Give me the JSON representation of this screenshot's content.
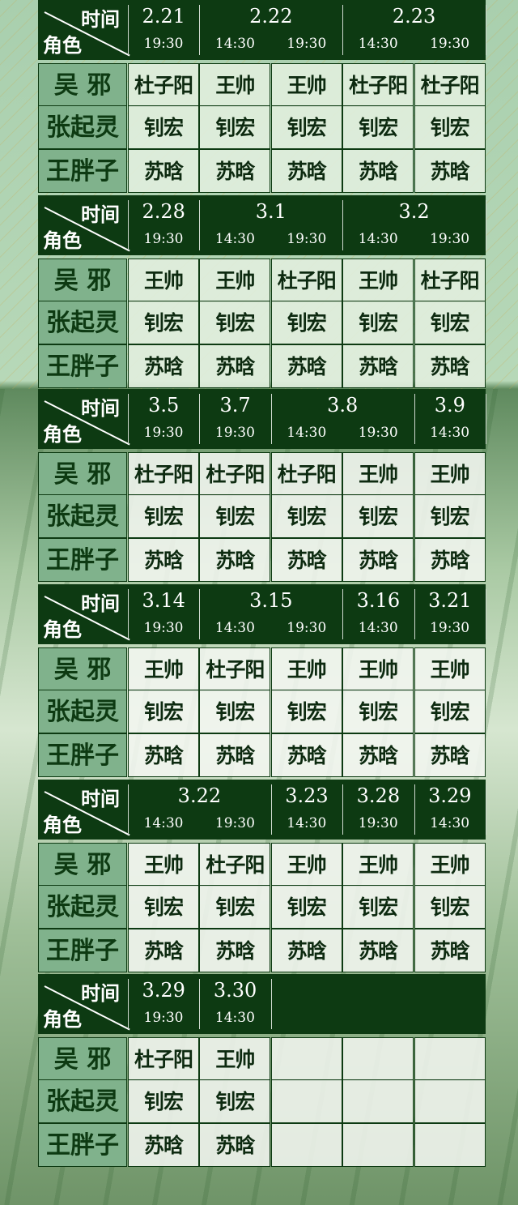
{
  "header_labels": {
    "time": "时间",
    "role": "角色"
  },
  "roles": [
    "吴 邪",
    "张起灵",
    "王胖子"
  ],
  "colors": {
    "header_bg": "#0d3a12",
    "role_bg": "#80b28c",
    "cell_bg": "#e1eede"
  },
  "blocks": [
    {
      "dates": [
        {
          "date": "2.21",
          "span": 1
        },
        {
          "date": "2.22",
          "span": 2
        },
        {
          "date": "2.23",
          "span": 2
        }
      ],
      "times": [
        "19:30",
        "14:30",
        "19:30",
        "14:30",
        "19:30"
      ],
      "cast": [
        [
          "杜子阳",
          "王帅",
          "王帅",
          "杜子阳",
          "杜子阳"
        ],
        [
          "钊宏",
          "钊宏",
          "钊宏",
          "钊宏",
          "钊宏"
        ],
        [
          "苏晗",
          "苏晗",
          "苏晗",
          "苏晗",
          "苏晗"
        ]
      ]
    },
    {
      "dates": [
        {
          "date": "2.28",
          "span": 1
        },
        {
          "date": "3.1",
          "span": 2
        },
        {
          "date": "3.2",
          "span": 2
        }
      ],
      "times": [
        "19:30",
        "14:30",
        "19:30",
        "14:30",
        "19:30"
      ],
      "cast": [
        [
          "王帅",
          "王帅",
          "杜子阳",
          "王帅",
          "杜子阳"
        ],
        [
          "钊宏",
          "钊宏",
          "钊宏",
          "钊宏",
          "钊宏"
        ],
        [
          "苏晗",
          "苏晗",
          "苏晗",
          "苏晗",
          "苏晗"
        ]
      ]
    },
    {
      "dates": [
        {
          "date": "3.5",
          "span": 1
        },
        {
          "date": "3.7",
          "span": 1
        },
        {
          "date": "3.8",
          "span": 2
        },
        {
          "date": "3.9",
          "span": 1
        }
      ],
      "times": [
        "19:30",
        "19:30",
        "14:30",
        "19:30",
        "14:30"
      ],
      "cast": [
        [
          "杜子阳",
          "杜子阳",
          "杜子阳",
          "王帅",
          "王帅"
        ],
        [
          "钊宏",
          "钊宏",
          "钊宏",
          "钊宏",
          "钊宏"
        ],
        [
          "苏晗",
          "苏晗",
          "苏晗",
          "苏晗",
          "苏晗"
        ]
      ]
    },
    {
      "dates": [
        {
          "date": "3.14",
          "span": 1
        },
        {
          "date": "3.15",
          "span": 2
        },
        {
          "date": "3.16",
          "span": 1
        },
        {
          "date": "3.21",
          "span": 1
        }
      ],
      "times": [
        "19:30",
        "14:30",
        "19:30",
        "14:30",
        "19:30"
      ],
      "cast": [
        [
          "王帅",
          "杜子阳",
          "王帅",
          "王帅",
          "王帅"
        ],
        [
          "钊宏",
          "钊宏",
          "钊宏",
          "钊宏",
          "钊宏"
        ],
        [
          "苏晗",
          "苏晗",
          "苏晗",
          "苏晗",
          "苏晗"
        ]
      ]
    },
    {
      "dates": [
        {
          "date": "3.22",
          "span": 2
        },
        {
          "date": "3.23",
          "span": 1
        },
        {
          "date": "3.28",
          "span": 1
        },
        {
          "date": "3.29",
          "span": 1
        }
      ],
      "times": [
        "14:30",
        "19:30",
        "14:30",
        "19:30",
        "14:30"
      ],
      "cast": [
        [
          "王帅",
          "杜子阳",
          "王帅",
          "王帅",
          "王帅"
        ],
        [
          "钊宏",
          "钊宏",
          "钊宏",
          "钊宏",
          "钊宏"
        ],
        [
          "苏晗",
          "苏晗",
          "苏晗",
          "苏晗",
          "苏晗"
        ]
      ]
    },
    {
      "dates": [
        {
          "date": "3.29",
          "span": 1
        },
        {
          "date": "3.30",
          "span": 1
        }
      ],
      "times": [
        "19:30",
        "14:30",
        "",
        "",
        ""
      ],
      "cast": [
        [
          "杜子阳",
          "王帅",
          "",
          "",
          ""
        ],
        [
          "钊宏",
          "钊宏",
          "",
          "",
          ""
        ],
        [
          "苏晗",
          "苏晗",
          "",
          "",
          ""
        ]
      ]
    }
  ]
}
